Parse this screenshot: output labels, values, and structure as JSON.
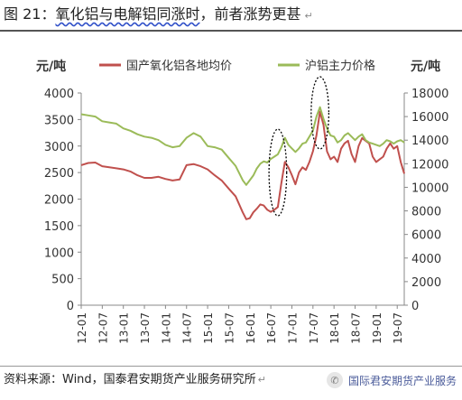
{
  "header": {
    "title_prefix": "图 21：",
    "title_emph": "氧化铝与电解铝同涨时",
    "title_suffix": "，前者涨势更甚",
    "paragraph_mark": "↵"
  },
  "footer": {
    "source": "资料来源：Wind，国泰君安期货产业服务研究所",
    "paragraph_mark": "↵",
    "watermark": "国际君安期货产业服务"
  },
  "icons": {
    "watermark": "wechat-icon"
  },
  "colors": {
    "series_alumina": "#c0504d",
    "series_aluminum": "#9bbb59",
    "axis": "#888888",
    "annotation": "#000000"
  },
  "chart_data": {
    "type": "line",
    "y_left_unit": "元/吨",
    "y_right_unit": "元/吨",
    "y_left_range": [
      0,
      4000
    ],
    "y_left_ticks": [
      0,
      500,
      1000,
      1500,
      2000,
      2500,
      3000,
      3500,
      4000
    ],
    "y_right_range": [
      0,
      18000
    ],
    "y_right_ticks": [
      0,
      2000,
      4000,
      6000,
      8000,
      10000,
      12000,
      14000,
      16000,
      18000
    ],
    "x_ticks": [
      "12-01",
      "12-07",
      "13-01",
      "13-07",
      "14-01",
      "14-07",
      "15-01",
      "15-07",
      "16-01",
      "16-07",
      "17-01",
      "17-07",
      "18-01",
      "18-07",
      "19-01",
      "19-07"
    ],
    "x_range": [
      "2012-01",
      "2019-09"
    ],
    "grid": false,
    "legend_position": "top",
    "series": [
      {
        "name": "国产氧化铝各地均价",
        "axis": "left",
        "color": "#c0504d",
        "x": [
          "2012-01",
          "2012-03",
          "2012-05",
          "2012-07",
          "2012-09",
          "2012-11",
          "2013-01",
          "2013-03",
          "2013-05",
          "2013-07",
          "2013-09",
          "2013-11",
          "2014-01",
          "2014-03",
          "2014-05",
          "2014-07",
          "2014-09",
          "2014-11",
          "2015-01",
          "2015-03",
          "2015-05",
          "2015-07",
          "2015-09",
          "2015-11",
          "2015-12",
          "2016-01",
          "2016-02",
          "2016-03",
          "2016-04",
          "2016-05",
          "2016-06",
          "2016-07",
          "2016-08",
          "2016-09",
          "2016-10",
          "2016-11",
          "2016-12",
          "2017-01",
          "2017-02",
          "2017-03",
          "2017-04",
          "2017-05",
          "2017-06",
          "2017-07",
          "2017-08",
          "2017-09",
          "2017-10",
          "2017-11",
          "2017-12",
          "2018-01",
          "2018-02",
          "2018-03",
          "2018-04",
          "2018-05",
          "2018-06",
          "2018-07",
          "2018-08",
          "2018-09",
          "2018-10",
          "2018-11",
          "2018-12",
          "2019-01",
          "2019-02",
          "2019-03",
          "2019-04",
          "2019-05",
          "2019-06",
          "2019-07",
          "2019-08",
          "2019-09"
        ],
        "values": [
          2640,
          2680,
          2690,
          2620,
          2600,
          2580,
          2560,
          2520,
          2450,
          2400,
          2400,
          2420,
          2380,
          2350,
          2370,
          2640,
          2660,
          2620,
          2560,
          2450,
          2350,
          2200,
          2050,
          1750,
          1620,
          1640,
          1750,
          1820,
          1900,
          1880,
          1800,
          1760,
          1800,
          1850,
          2300,
          2700,
          2600,
          2450,
          2280,
          2500,
          2600,
          2550,
          2700,
          2900,
          3200,
          3650,
          3400,
          2900,
          2750,
          2800,
          2700,
          2950,
          3050,
          3100,
          2850,
          2700,
          3000,
          3150,
          3100,
          3050,
          2800,
          2700,
          2750,
          2800,
          2950,
          3050,
          2950,
          3000,
          2700,
          2480
        ]
      },
      {
        "name": "沪铝主力价格",
        "axis": "right",
        "color": "#9bbb59",
        "x": [
          "2012-01",
          "2012-03",
          "2012-05",
          "2012-07",
          "2012-09",
          "2012-11",
          "2013-01",
          "2013-03",
          "2013-05",
          "2013-07",
          "2013-09",
          "2013-11",
          "2014-01",
          "2014-03",
          "2014-05",
          "2014-07",
          "2014-09",
          "2014-11",
          "2015-01",
          "2015-03",
          "2015-05",
          "2015-07",
          "2015-09",
          "2015-11",
          "2015-12",
          "2016-01",
          "2016-02",
          "2016-03",
          "2016-04",
          "2016-05",
          "2016-06",
          "2016-07",
          "2016-08",
          "2016-09",
          "2016-10",
          "2016-11",
          "2016-12",
          "2017-01",
          "2017-02",
          "2017-03",
          "2017-04",
          "2017-05",
          "2017-06",
          "2017-07",
          "2017-08",
          "2017-09",
          "2017-10",
          "2017-11",
          "2017-12",
          "2018-01",
          "2018-02",
          "2018-03",
          "2018-04",
          "2018-05",
          "2018-06",
          "2018-07",
          "2018-08",
          "2018-09",
          "2018-10",
          "2018-11",
          "2018-12",
          "2019-01",
          "2019-02",
          "2019-03",
          "2019-04",
          "2019-05",
          "2019-06",
          "2019-07",
          "2019-08",
          "2019-09"
        ],
        "values": [
          16200,
          16100,
          16000,
          15600,
          15500,
          15400,
          15000,
          14800,
          14500,
          14300,
          14200,
          14000,
          13600,
          13400,
          13500,
          14200,
          14600,
          14300,
          13500,
          13400,
          13200,
          12500,
          11800,
          10600,
          10200,
          10600,
          11000,
          11600,
          12000,
          12200,
          12100,
          12400,
          12600,
          12800,
          13400,
          14200,
          13600,
          13300,
          13000,
          13300,
          13700,
          13800,
          14300,
          14800,
          16000,
          16800,
          15800,
          15000,
          14400,
          14300,
          13800,
          14000,
          14400,
          14600,
          14300,
          14000,
          14300,
          14500,
          14000,
          13800,
          13700,
          13600,
          13500,
          13700,
          14000,
          13900,
          13700,
          13900,
          14000,
          13800
        ]
      }
    ],
    "annotations": [
      {
        "type": "ellipse",
        "style": "dotted",
        "from": "2016-07",
        "to": "2016-11"
      },
      {
        "type": "ellipse",
        "style": "dotted",
        "from": "2017-07",
        "to": "2017-11"
      }
    ]
  }
}
